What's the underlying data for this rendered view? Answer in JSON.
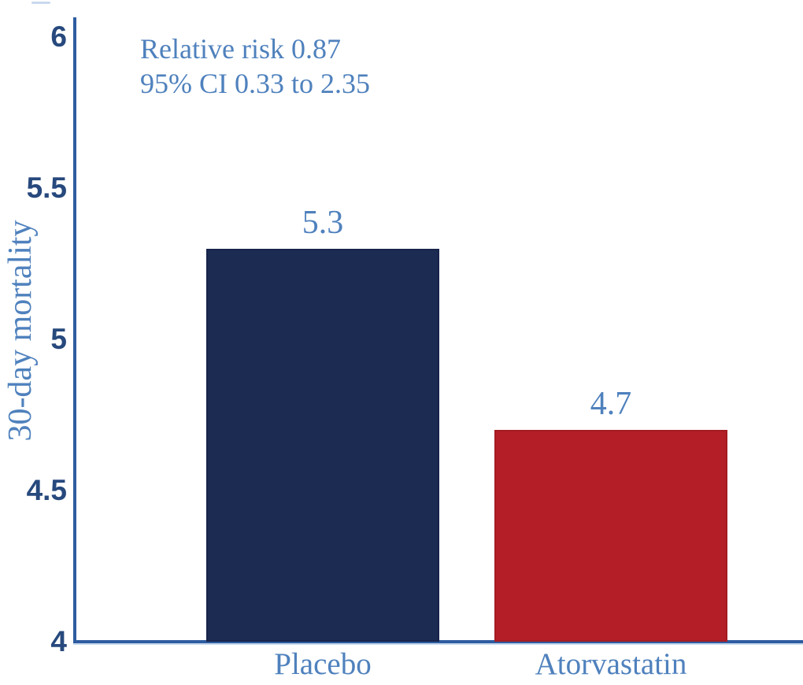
{
  "chart_data": {
    "type": "bar",
    "categories": [
      "Placebo",
      "Atorvastatin"
    ],
    "values": [
      5.3,
      4.7
    ],
    "series": [
      {
        "name": "30-day mortality",
        "values": [
          5.3,
          4.7
        ]
      }
    ],
    "data_labels": [
      "5.3",
      "4.7"
    ],
    "title": "",
    "xlabel": "",
    "ylabel": "30-day mortality",
    "ylim": [
      4,
      6
    ],
    "yticks": [
      4,
      4.5,
      5,
      5.5,
      6
    ],
    "ytick_labels": [
      "4",
      "4.5",
      "5",
      "5.5",
      "6"
    ],
    "grid": "off",
    "legend": "none",
    "annotation": {
      "line1": "Relative risk 0.87",
      "line2": "95% CI 0.33 to 2.35"
    },
    "bar_colors": [
      "#1c2b52",
      "#b41e26"
    ],
    "bar_border_colors": [
      "#16234a",
      "#a41b22"
    ]
  },
  "colors": {
    "axis_line": "#2e5ca0",
    "axis_underline": "#9bbce0",
    "tick_label": "#27497d",
    "serif_text_blue": "#4f81bd",
    "top_dash": "#c9d9ee",
    "background": "#ffffff"
  }
}
